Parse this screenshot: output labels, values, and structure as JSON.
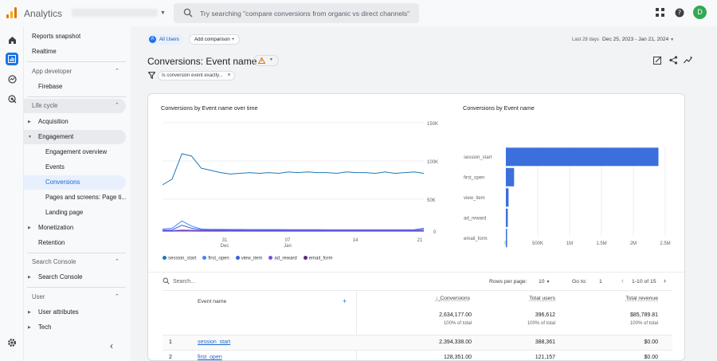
{
  "app": {
    "title": "Analytics",
    "avatar_letter": "D"
  },
  "search": {
    "placeholder": "Try searching \"compare conversions from organic vs direct channels\""
  },
  "nav": {
    "items": [
      {
        "label": "Reports snapshot"
      },
      {
        "label": "Realtime"
      },
      {
        "label": "App developer"
      },
      {
        "label": "Firebase"
      },
      {
        "label": "Life cycle"
      },
      {
        "label": "Acquisition"
      },
      {
        "label": "Engagement"
      },
      {
        "label": "Engagement overview"
      },
      {
        "label": "Events"
      },
      {
        "label": "Conversions"
      },
      {
        "label": "Pages and screens: Page ti..."
      },
      {
        "label": "Landing page"
      },
      {
        "label": "Monetization"
      },
      {
        "label": "Retention"
      },
      {
        "label": "Search Console"
      },
      {
        "label": "Search Console"
      },
      {
        "label": "User"
      },
      {
        "label": "User attributes"
      },
      {
        "label": "Tech"
      }
    ]
  },
  "header": {
    "segment_letter": "A",
    "segment": "All Users",
    "add_comparison": "Add comparison",
    "date_label": "Last 28 days",
    "date_range": "Dec 25, 2023 - Jan 21, 2024",
    "page_title": "Conversions: Event name",
    "filter": "Is conversion event exactly..."
  },
  "line_chart": {
    "title": "Conversions by Event name over time",
    "y_ticks": [
      "150K",
      "100K",
      "50K",
      "0"
    ],
    "x_ticks": [
      "31",
      "07",
      "14",
      "21"
    ],
    "x_subticks": [
      "Dec",
      "Jan"
    ]
  },
  "bar_chart": {
    "title": "Conversions by Event name",
    "x_ticks": [
      "0",
      "500K",
      "1M",
      "1.5M",
      "2M",
      "2.5M"
    ]
  },
  "colors": {
    "session_start": "#1f77b4",
    "first_open": "#4285f4",
    "view_item": "#3a5ee0",
    "ad_reward": "#7b4ee0",
    "email_form": "#5b2a86",
    "accent": "#1a73e8"
  },
  "chart_data": [
    {
      "type": "line",
      "title": "Conversions by Event name over time",
      "x": [
        "Dec 25",
        "Dec 26",
        "Dec 27",
        "Dec 28",
        "Dec 29",
        "Dec 30",
        "Dec 31",
        "Jan 01",
        "Jan 02",
        "Jan 03",
        "Jan 04",
        "Jan 05",
        "Jan 06",
        "Jan 07",
        "Jan 08",
        "Jan 09",
        "Jan 10",
        "Jan 11",
        "Jan 12",
        "Jan 13",
        "Jan 14",
        "Jan 15",
        "Jan 16",
        "Jan 17",
        "Jan 18",
        "Jan 19",
        "Jan 20",
        "Jan 21"
      ],
      "ylim": [
        0,
        150000
      ],
      "series": [
        {
          "name": "session_start",
          "values": [
            64000,
            72000,
            107000,
            104000,
            87000,
            84000,
            81000,
            79000,
            80000,
            81000,
            80000,
            81000,
            80000,
            82000,
            81000,
            82000,
            81000,
            81000,
            80000,
            82000,
            81000,
            81000,
            80000,
            82000,
            80000,
            81000,
            82000,
            80000
          ]
        },
        {
          "name": "first_open",
          "values": [
            3000,
            4000,
            14000,
            7000,
            3000,
            2500,
            2500,
            2300,
            2300,
            2200,
            2200,
            2200,
            2200,
            2100,
            2100,
            2100,
            2100,
            2000,
            2000,
            2000,
            2000,
            2000,
            2000,
            2000,
            2000,
            2000,
            2000,
            4000
          ]
        },
        {
          "name": "view_item",
          "values": [
            1500,
            1600,
            8000,
            4000,
            2000,
            1800,
            1700,
            1600,
            1600,
            1600,
            1500,
            1500,
            1500,
            1500,
            1500,
            1500,
            1500,
            1500,
            1500,
            1500,
            1500,
            1500,
            1500,
            1500,
            1500,
            1500,
            1500,
            2500
          ]
        },
        {
          "name": "ad_reward",
          "values": [
            500,
            600,
            1500,
            1200,
            900,
            800,
            800,
            700,
            700,
            700,
            700,
            700,
            700,
            700,
            700,
            700,
            700,
            700,
            700,
            700,
            700,
            700,
            700,
            700,
            700,
            700,
            700,
            900
          ]
        },
        {
          "name": "email_form",
          "values": [
            0,
            0,
            200,
            100,
            50,
            50,
            50,
            50,
            50,
            50,
            50,
            50,
            50,
            50,
            50,
            50,
            50,
            50,
            50,
            50,
            50,
            50,
            50,
            50,
            50,
            50,
            50,
            50
          ]
        }
      ]
    },
    {
      "type": "bar",
      "title": "Conversions by Event name",
      "categories": [
        "session_start",
        "first_open",
        "view_item",
        "ad_reward",
        "email_form"
      ],
      "values": [
        2394338,
        128351,
        42000,
        30000,
        2500
      ],
      "xlim": [
        0,
        2500000
      ]
    }
  ],
  "table": {
    "search_placeholder": "Search...",
    "rows_per_page_label": "Rows per page:",
    "rows_per_page": "10",
    "goto_label": "Go to:",
    "goto_value": "1",
    "range": "1-10 of 15",
    "columns": {
      "event": "Event name",
      "conversions": "Conversions",
      "users": "Total users",
      "revenue": "Total revenue"
    },
    "totals": {
      "conversions": "2,634,177.00",
      "users": "396,612",
      "revenue": "$85,789.81",
      "pct": "100% of total"
    },
    "rows": [
      {
        "n": "1",
        "event": "session_start",
        "conversions": "2,394,338.00",
        "users": "388,361",
        "revenue": "$0.00"
      },
      {
        "n": "2",
        "event": "first_open",
        "conversions": "128,351.00",
        "users": "121,157",
        "revenue": "$0.00"
      }
    ]
  }
}
